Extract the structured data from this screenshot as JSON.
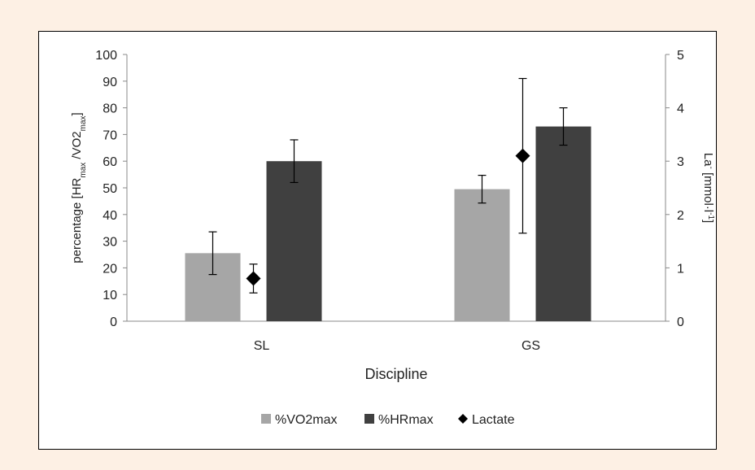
{
  "chart_data": {
    "type": "bar",
    "categories": [
      "SL",
      "GS"
    ],
    "xlabel": "Discipline",
    "ylabel": {
      "prefix": "percentage [HR",
      "sub1": "max",
      "mid": " /VO2",
      "sub2": "max",
      "suffix": "]"
    },
    "y2label": {
      "prefix": "La",
      "sup1": "-",
      "mid": " [mmol·l",
      "sup2": "-1",
      "suffix": "]"
    },
    "ylim": [
      0,
      100
    ],
    "y2lim": [
      0,
      5
    ],
    "yticks": [
      0,
      10,
      20,
      30,
      40,
      50,
      60,
      70,
      80,
      90,
      100
    ],
    "y2ticks": [
      0,
      1,
      2,
      3,
      4,
      5
    ],
    "series": [
      {
        "name": "%VO2max",
        "kind": "bar",
        "axis": "left",
        "color": "#a6a6a6",
        "values": [
          25.5,
          49.5
        ],
        "errors": [
          8,
          5.2
        ]
      },
      {
        "name": "%HRmax",
        "kind": "bar",
        "axis": "left",
        "color": "#404040",
        "values": [
          60,
          73
        ],
        "errors": [
          8,
          7
        ]
      },
      {
        "name": "Lactate",
        "kind": "marker",
        "marker": "diamond",
        "axis": "right",
        "color": "#000000",
        "values": [
          0.8,
          3.1
        ],
        "errors": [
          0.27,
          1.45
        ]
      }
    ],
    "legend": {
      "position": "bottom",
      "entries": [
        "%VO2max",
        "%HRmax",
        "Lactate"
      ]
    },
    "grid": false
  }
}
